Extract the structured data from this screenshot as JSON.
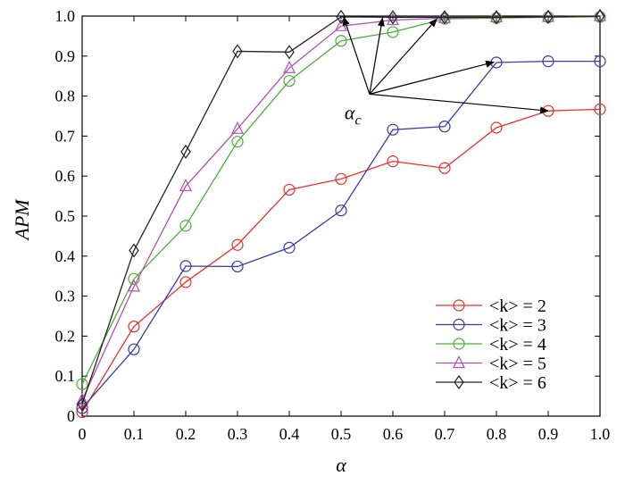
{
  "chart_data": {
    "type": "line",
    "xlabel": "α",
    "ylabel": "APM",
    "xlim": [
      0,
      1.0
    ],
    "ylim": [
      0,
      1.0
    ],
    "x_ticks": [
      "0",
      "0.1",
      "0.2",
      "0.3",
      "0.4",
      "0.5",
      "0.6",
      "0.7",
      "0.8",
      "0.9",
      "1.0"
    ],
    "y_ticks": [
      "0",
      "0.1",
      "0.2",
      "0.3",
      "0.4",
      "0.5",
      "0.6",
      "0.7",
      "0.8",
      "0.9",
      "1.0"
    ],
    "grid": false,
    "legend_position": "bottom-right",
    "x": [
      0,
      0.1,
      0.2,
      0.3,
      0.4,
      0.5,
      0.6,
      0.7,
      0.8,
      0.9,
      1.0
    ],
    "series": [
      {
        "name": "<k> = 2",
        "marker": "circle",
        "color": "#e8302a",
        "values": [
          0.01,
          0.224,
          0.335,
          0.428,
          0.566,
          0.593,
          0.637,
          0.62,
          0.721,
          0.763,
          0.767
        ]
      },
      {
        "name": "<k> = 3",
        "marker": "circle",
        "color": "#3a3aa8",
        "values": [
          0.02,
          0.167,
          0.375,
          0.374,
          0.421,
          0.514,
          0.716,
          0.724,
          0.884,
          0.887,
          0.887
        ]
      },
      {
        "name": "<k> = 4",
        "marker": "circle",
        "color": "#4caf3a",
        "values": [
          0.08,
          0.343,
          0.476,
          0.686,
          0.838,
          0.938,
          0.96,
          0.993,
          0.995,
          0.997,
          0.998
        ]
      },
      {
        "name": "<k> = 5",
        "marker": "triangle",
        "color": "#b050b0",
        "values": [
          0.04,
          0.324,
          0.575,
          0.718,
          0.87,
          0.975,
          0.99,
          0.995,
          0.997,
          0.998,
          1.0
        ]
      },
      {
        "name": "<k> = 6",
        "marker": "diamond",
        "color": "#222222",
        "values": [
          0.03,
          0.414,
          0.661,
          0.912,
          0.91,
          0.998,
          0.997,
          0.997,
          0.997,
          0.998,
          1.0
        ]
      }
    ],
    "annotation": {
      "label": "α",
      "label_subscript": "c",
      "origin": [
        0.555,
        0.805
      ],
      "targets": [
        [
          0.505,
          0.997
        ],
        [
          0.58,
          0.995
        ],
        [
          0.685,
          0.993
        ],
        [
          0.795,
          0.885
        ],
        [
          0.9,
          0.763
        ]
      ]
    }
  }
}
